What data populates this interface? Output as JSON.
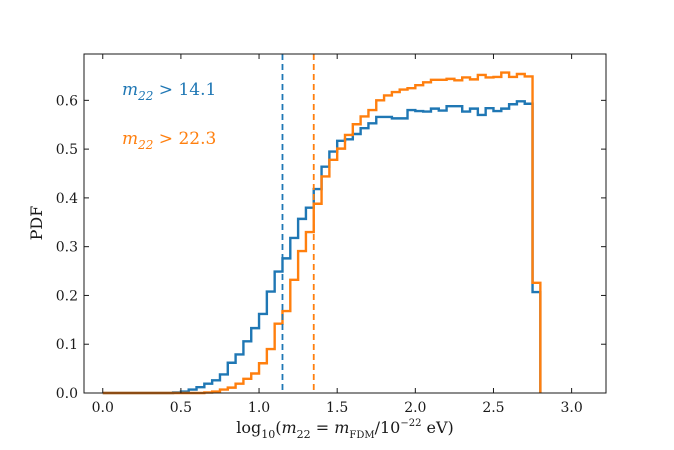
{
  "chart_data": {
    "type": "histogram-step",
    "xlabel": "log10(m22 = mFDM/10^-22 eV)",
    "ylabel": "PDF",
    "xlim": [
      -0.12,
      3.22
    ],
    "ylim": [
      0.0,
      0.695
    ],
    "xticks": [
      0.0,
      0.5,
      1.0,
      1.5,
      2.0,
      2.5,
      3.0
    ],
    "xtick_labels": [
      "0.0",
      "0.5",
      "1.0",
      "1.5",
      "2.0",
      "2.5",
      "3.0"
    ],
    "yticks": [
      0.0,
      0.1,
      0.2,
      0.3,
      0.4,
      0.5,
      0.6
    ],
    "ytick_labels": [
      "0.0",
      "0.1",
      "0.2",
      "0.3",
      "0.4",
      "0.5",
      "0.6"
    ],
    "bin_start": 0.0,
    "bin_width": 0.05,
    "series": [
      {
        "name": "m22 > 14.1",
        "color": "#1f77b4",
        "threshold": 1.15,
        "values": [
          0.0,
          0.0,
          0.0,
          0.0,
          0.0,
          0.0,
          0.0,
          0.0,
          0.0,
          0.001,
          0.003,
          0.007,
          0.012,
          0.019,
          0.026,
          0.038,
          0.062,
          0.079,
          0.106,
          0.133,
          0.162,
          0.208,
          0.249,
          0.276,
          0.318,
          0.357,
          0.38,
          0.418,
          0.464,
          0.495,
          0.517,
          0.52,
          0.531,
          0.543,
          0.553,
          0.566,
          0.566,
          0.563,
          0.563,
          0.58,
          0.578,
          0.577,
          0.583,
          0.579,
          0.588,
          0.588,
          0.577,
          0.583,
          0.57,
          0.584,
          0.578,
          0.583,
          0.592,
          0.598,
          0.593,
          0.207
        ]
      },
      {
        "name": "m22 > 22.3",
        "color": "#ff7f0e",
        "threshold": 1.35,
        "values": [
          0.0,
          0.0,
          0.0,
          0.0,
          0.0,
          0.0,
          0.0,
          0.0,
          0.0,
          0.0,
          0.0,
          0.0,
          0.0,
          0.001,
          0.003,
          0.007,
          0.011,
          0.019,
          0.029,
          0.04,
          0.061,
          0.09,
          0.142,
          0.168,
          0.232,
          0.291,
          0.33,
          0.388,
          0.444,
          0.478,
          0.501,
          0.529,
          0.551,
          0.567,
          0.58,
          0.6,
          0.61,
          0.617,
          0.622,
          0.625,
          0.631,
          0.637,
          0.642,
          0.642,
          0.644,
          0.641,
          0.647,
          0.643,
          0.652,
          0.647,
          0.648,
          0.657,
          0.648,
          0.654,
          0.649,
          0.226
        ]
      }
    ],
    "legend": [
      {
        "label": "m22 > 14.1",
        "color": "#1f77b4"
      },
      {
        "label": "m22 > 22.3",
        "color": "#ff7f0e"
      }
    ]
  }
}
